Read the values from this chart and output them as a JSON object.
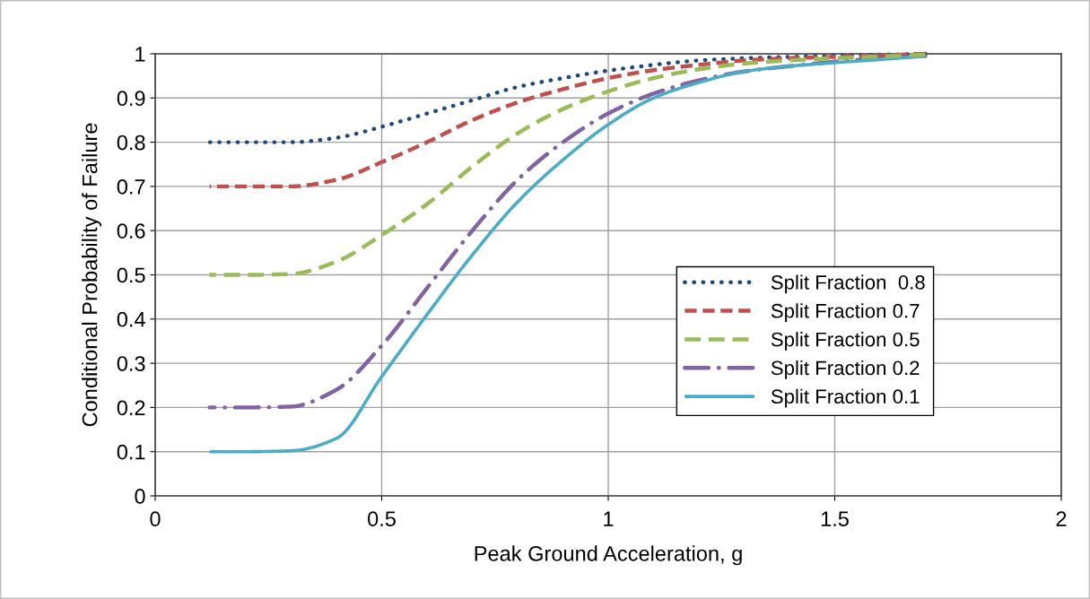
{
  "chart_data": {
    "type": "line",
    "xlabel": "Peak Ground Acceleration, g",
    "ylabel": "Conditional Probability of Failure",
    "x": [
      0.12,
      0.2,
      0.3,
      0.4,
      0.5,
      0.6,
      0.7,
      0.8,
      0.9,
      1.0,
      1.1,
      1.2,
      1.3,
      1.4,
      1.5,
      1.6,
      1.7
    ],
    "series": [
      {
        "name": "Split Fraction  0.8",
        "color": "#1f497d",
        "line_style": "dotted",
        "values": [
          0.8,
          0.8,
          0.8,
          0.81,
          0.835,
          0.865,
          0.895,
          0.925,
          0.945,
          0.962,
          0.975,
          0.985,
          0.99,
          0.993,
          0.996,
          0.998,
          1.0
        ]
      },
      {
        "name": "Split Fraction 0.7",
        "color": "#c0504d",
        "line_style": "dashed",
        "values": [
          0.7,
          0.7,
          0.7,
          0.715,
          0.755,
          0.8,
          0.85,
          0.89,
          0.92,
          0.945,
          0.963,
          0.975,
          0.985,
          0.99,
          0.993,
          0.996,
          1.0
        ]
      },
      {
        "name": "Split Fraction 0.5",
        "color": "#9bbb59",
        "line_style": "long_dash",
        "values": [
          0.5,
          0.5,
          0.502,
          0.53,
          0.59,
          0.66,
          0.745,
          0.82,
          0.875,
          0.915,
          0.945,
          0.965,
          0.978,
          0.985,
          0.99,
          0.994,
          0.998
        ]
      },
      {
        "name": "Split Fraction 0.2",
        "color": "#8064a2",
        "line_style": "dash_dot",
        "values": [
          0.2,
          0.2,
          0.202,
          0.24,
          0.34,
          0.47,
          0.6,
          0.715,
          0.8,
          0.865,
          0.91,
          0.94,
          0.96,
          0.972,
          0.982,
          0.99,
          0.995
        ]
      },
      {
        "name": "Split Fraction 0.1",
        "color": "#4bacc6",
        "line_style": "solid",
        "values": [
          0.1,
          0.1,
          0.102,
          0.13,
          0.27,
          0.41,
          0.545,
          0.665,
          0.76,
          0.84,
          0.9,
          0.935,
          0.96,
          0.972,
          0.98,
          0.987,
          0.995
        ]
      }
    ],
    "xlim": [
      0,
      2
    ],
    "xticks": [
      0,
      0.5,
      1,
      1.5,
      2
    ],
    "ylim": [
      0,
      1
    ],
    "yticks": [
      0,
      0.1,
      0.2,
      0.3,
      0.4,
      0.5,
      0.6,
      0.7,
      0.8,
      0.9,
      1
    ],
    "grid": true,
    "legend": "center right",
    "marker": "none"
  }
}
